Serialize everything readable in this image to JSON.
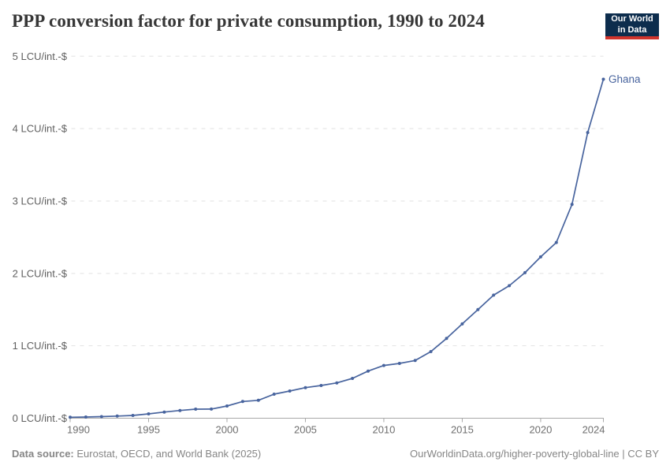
{
  "header": {
    "title": "PPP conversion factor for private consumption, 1990 to 2024"
  },
  "logo": {
    "line1": "Our World",
    "line2": "in Data"
  },
  "footer": {
    "source_label": "Data source:",
    "source_text": "Eurostat, OECD, and World Bank (2025)",
    "citation": "OurWorldinData.org/higher-poverty-global-line | CC BY"
  },
  "colors": {
    "line": "#48649e",
    "entity_label": "#48649e",
    "grid": "#e2e2e2",
    "axis": "#a8a8a8",
    "y_tick_label": "#5f5f5f",
    "x_tick_label": "#6e6e6e",
    "title": "#373737",
    "footer_text": "#868686",
    "logo_bg": "#0d2d4d",
    "logo_red": "#d0342c"
  },
  "chart_data": {
    "type": "line",
    "title": "PPP conversion factor for private consumption, 1990 to 2024",
    "entity": "Ghana",
    "unit": "LCU/int.-$",
    "xlim": [
      1990,
      2024
    ],
    "ylim": [
      0,
      5
    ],
    "grid": "horizontal-dashed",
    "legend": "label-at-line-end",
    "x": [
      1990,
      1991,
      1992,
      1993,
      1994,
      1995,
      1996,
      1997,
      1998,
      1999,
      2000,
      2001,
      2002,
      2003,
      2004,
      2005,
      2006,
      2007,
      2008,
      2009,
      2010,
      2011,
      2012,
      2013,
      2014,
      2015,
      2016,
      2017,
      2018,
      2019,
      2020,
      2021,
      2022,
      2023,
      2024
    ],
    "series": [
      {
        "name": "Ghana",
        "values": [
          0.013,
          0.016,
          0.022,
          0.029,
          0.038,
          0.06,
          0.085,
          0.107,
          0.125,
          0.126,
          0.169,
          0.231,
          0.247,
          0.332,
          0.376,
          0.423,
          0.452,
          0.488,
          0.55,
          0.651,
          0.728,
          0.757,
          0.797,
          0.92,
          1.102,
          1.302,
          1.5,
          1.7,
          1.83,
          2.01,
          2.228,
          2.427,
          2.954,
          3.946,
          4.682
        ]
      }
    ],
    "xticks": [
      1990,
      1995,
      2000,
      2005,
      2010,
      2015,
      2020,
      2024
    ],
    "yticks": [
      {
        "value": 0,
        "label": "0 LCU/int.-$"
      },
      {
        "value": 1,
        "label": "1 LCU/int.-$"
      },
      {
        "value": 2,
        "label": "2 LCU/int.-$"
      },
      {
        "value": 3,
        "label": "3 LCU/int.-$"
      },
      {
        "value": 4,
        "label": "4 LCU/int.-$"
      },
      {
        "value": 5,
        "label": "5 LCU/int.-$"
      }
    ]
  }
}
